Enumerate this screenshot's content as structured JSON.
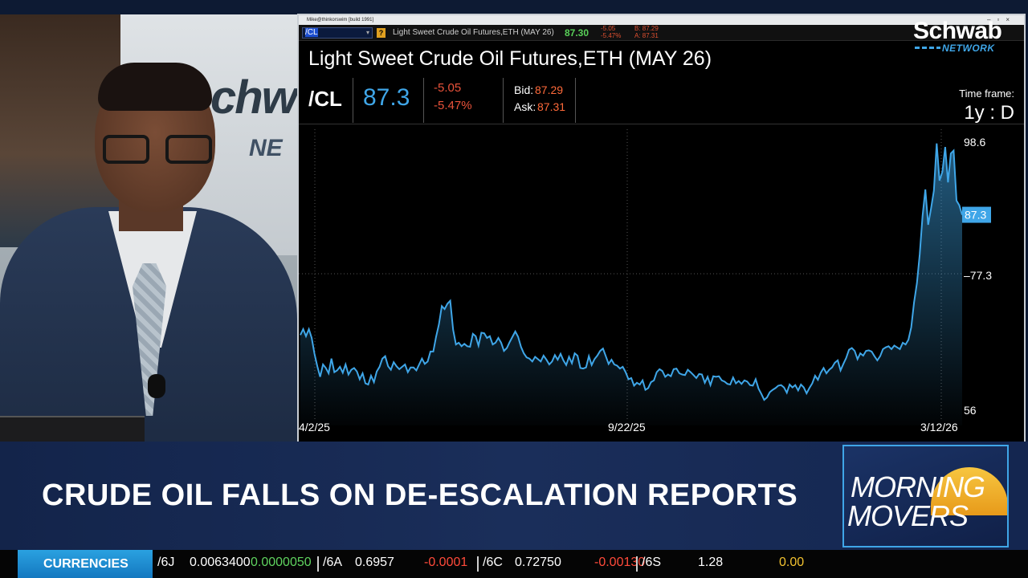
{
  "platform": {
    "titlebar_text": "Mike@thinkorswim [build 1991]",
    "toolbar": {
      "symbol_input": "/CL",
      "description": "Light Sweet Crude Oil Futures,ETH (MAY 26)",
      "last": "87.30",
      "net_change": "-5.05",
      "pct_change": "-5.47%",
      "bid": "B: 87.29",
      "ask": "A: 87.31"
    },
    "title": "Light Sweet Crude Oil Futures,ETH (MAY 26)",
    "quote": {
      "symbol": "/CL",
      "last": "87.3",
      "net_change": "-5.05",
      "pct_change": "-5.47%",
      "bid_label": "Bid:",
      "bid": "87.29",
      "ask_label": "Ask:",
      "ask": "87.31"
    },
    "time_frame_label": "Time frame:",
    "time_frame_value": "1y : D"
  },
  "brand": {
    "name": "Schwab",
    "sub": "NETWORK"
  },
  "headline": "CRUDE OIL FALLS ON DE-ESCALATION REPORTS",
  "show_logo": {
    "line1": "MORNING",
    "line2": "MOVERS"
  },
  "ticker": {
    "label": "CURRENCIES",
    "items": [
      {
        "symbol": "/6J",
        "price": "0.0063400",
        "change": "0.0000050",
        "change_color": "#5fd35f"
      },
      {
        "symbol": "/6A",
        "price": "0.6957",
        "change": "-0.0001",
        "change_color": "#ff4a3a"
      },
      {
        "symbol": "/6C",
        "price": "0.72750",
        "change": "-0.00130",
        "change_color": "#ff4a3a"
      },
      {
        "symbol": "/6S",
        "price": "1.28",
        "change": "0.00",
        "change_color": "#f2c230"
      }
    ]
  },
  "colors": {
    "line": "#3fa6e8",
    "negative": "#e9523a",
    "accent": "#3fa6e8"
  },
  "chart_data": {
    "type": "area",
    "x_tick_labels": [
      "4/2/25",
      "9/22/25",
      "3/12/26"
    ],
    "y_tick_labels": [
      "98.6",
      "77.3",
      "56"
    ],
    "last_price_label": "87.3",
    "ylim": [
      54,
      101
    ],
    "grid": "dotted",
    "values": [
      66.9,
      67.9,
      66.7,
      67.9,
      66.4,
      63.7,
      61.6,
      59.8,
      61.9,
      61.3,
      60.4,
      62.9,
      60.6,
      60.9,
      61.5,
      60.5,
      61.9,
      60.2,
      61.0,
      61.3,
      60.7,
      59.4,
      60.4,
      58.7,
      58.5,
      60.0,
      58.9,
      60.7,
      61.5,
      62.9,
      63.3,
      61.6,
      61.0,
      62.3,
      61.6,
      61.1,
      61.5,
      61.9,
      60.6,
      61.4,
      61.4,
      60.9,
      61.9,
      62.9,
      62.0,
      62.4,
      64.1,
      64.1,
      66.6,
      68.7,
      71.8,
      71.3,
      72.2,
      72.7,
      67.8,
      65.3,
      65.6,
      65.0,
      65.4,
      65.0,
      64.9,
      67.1,
      66.7,
      65.1,
      67.3,
      67.2,
      66.4,
      66.7,
      65.3,
      65.6,
      66.4,
      65.6,
      64.2,
      64.7,
      65.7,
      66.6,
      67.5,
      66.6,
      64.9,
      63.8,
      63.1,
      62.9,
      62.4,
      63.2,
      62.8,
      62.4,
      63.4,
      62.7,
      61.9,
      62.4,
      63.5,
      62.7,
      63.7,
      62.6,
      61.8,
      63.2,
      62.1,
      63.8,
      63.4,
      61.3,
      61.2,
      61.4,
      63.3,
      61.8,
      62.8,
      63.4,
      64.2,
      64.6,
      63.3,
      62.0,
      62.7,
      61.9,
      61.7,
      61.2,
      61.5,
      60.6,
      59.4,
      59.6,
      58.3,
      58.8,
      58.5,
      59.2,
      57.6,
      57.9,
      58.9,
      59.2,
      60.6,
      61.1,
      60.8,
      59.8,
      60.2,
      59.9,
      61.1,
      61.2,
      60.4,
      60.2,
      60.1,
      61.0,
      60.6,
      60.1,
      59.6,
      60.3,
      60.2,
      58.8,
      59.8,
      58.4,
      59.9,
      59.8,
      59.9,
      59.2,
      59.0,
      58.6,
      58.5,
      59.7,
      58.7,
      59.1,
      58.6,
      59.2,
      59.0,
      58.4,
      58.3,
      59.4,
      57.8,
      56.9,
      55.9,
      56.3,
      57.2,
      57.6,
      57.9,
      58.3,
      58.4,
      58.0,
      57.1,
      58.5,
      58.0,
      58.4,
      57.5,
      58.5,
      58.0,
      57.0,
      57.9,
      58.7,
      60.0,
      59.3,
      60.5,
      61.3,
      60.4,
      61.0,
      61.4,
      62.2,
      62.6,
      60.9,
      62.0,
      63.0,
      64.4,
      64.7,
      64.2,
      62.8,
      63.8,
      63.4,
      64.2,
      64.3,
      64.1,
      63.3,
      62.6,
      63.3,
      64.5,
      64.8,
      65.0,
      64.5,
      65.1,
      64.8,
      64.5,
      65.6,
      65.3,
      66.1,
      68.2,
      72.4,
      75.7,
      80.6,
      87.1,
      91.6,
      85.6,
      88.4,
      91.4,
      99.4,
      93.1,
      94.6,
      98.8,
      92.8,
      97.7,
      98.2,
      89.7,
      88.9,
      87.3
    ]
  }
}
